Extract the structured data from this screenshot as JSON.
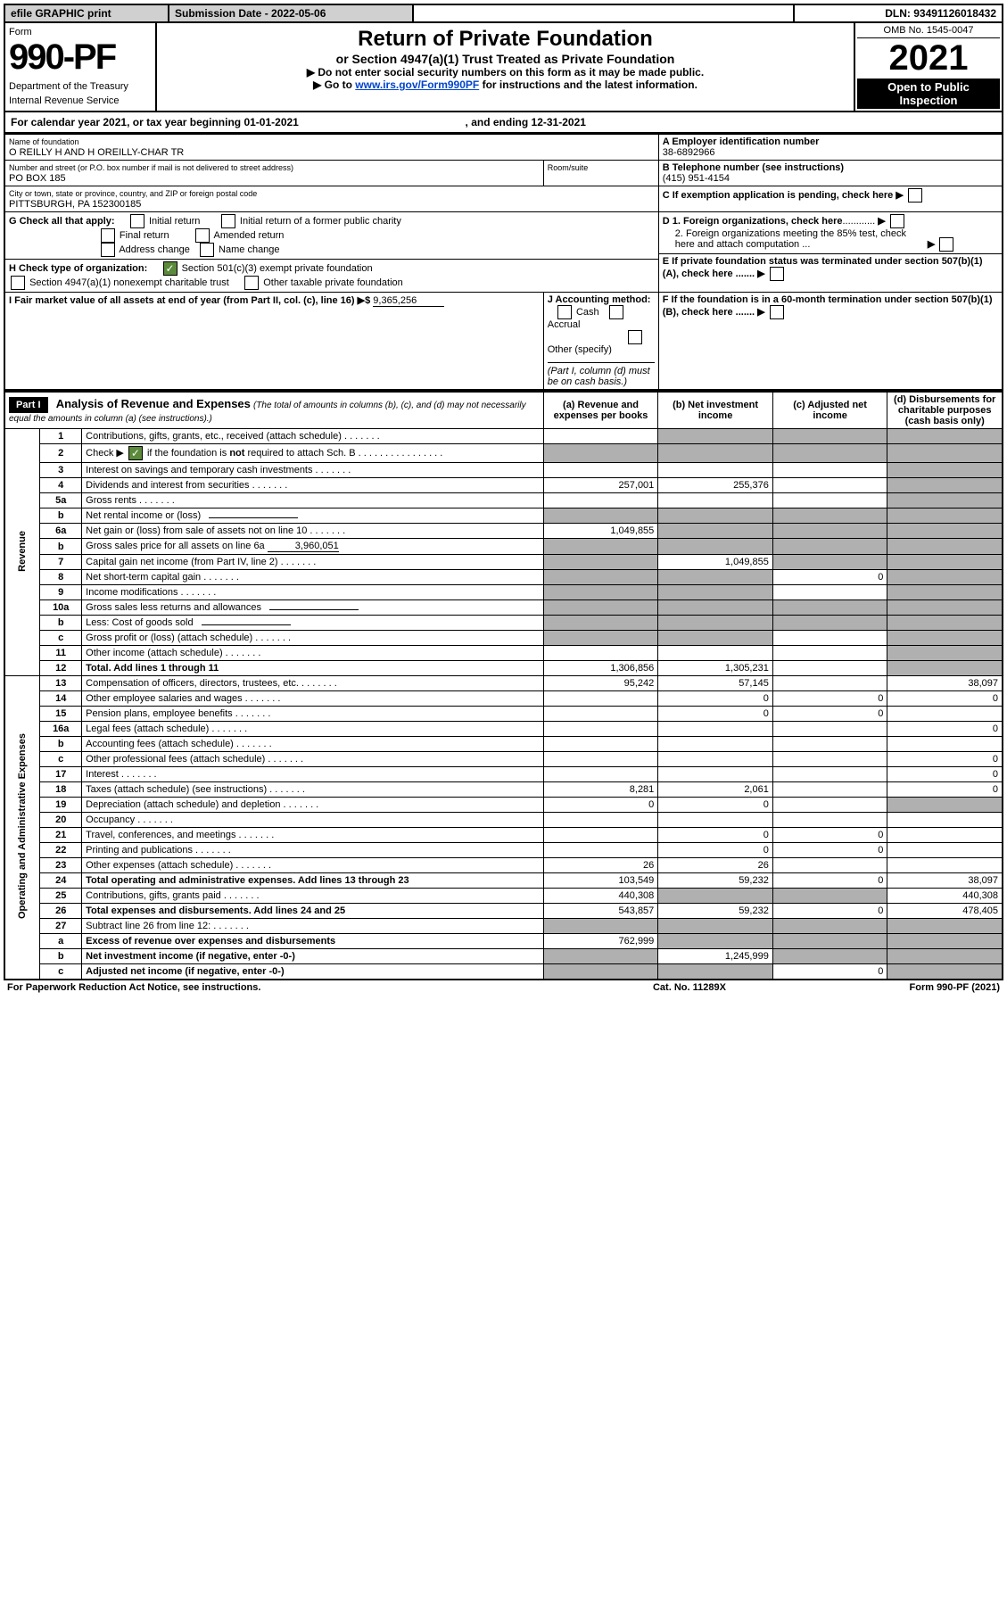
{
  "topbar": {
    "efile_label": "efile GRAPHIC print",
    "submission_label": "Submission Date - 2022-05-06",
    "dln_label": "DLN: 93491126018432"
  },
  "header": {
    "form_label": "Form",
    "form_number": "990-PF",
    "dept": "Department of the Treasury",
    "irs": "Internal Revenue Service",
    "title": "Return of Private Foundation",
    "subtitle": "or Section 4947(a)(1) Trust Treated as Private Foundation",
    "note1": "▶ Do not enter social security numbers on this form as it may be made public.",
    "note2_pre": "▶ Go to ",
    "note2_link": "www.irs.gov/Form990PF",
    "note2_post": " for instructions and the latest information.",
    "omb": "OMB No. 1545-0047",
    "year": "2021",
    "open1": "Open to Public",
    "open2": "Inspection"
  },
  "calyear": {
    "pre": "For calendar year 2021, or tax year beginning ",
    "begin": "01-01-2021",
    "mid": " , and ending ",
    "end": "12-31-2021"
  },
  "id": {
    "name_label": "Name of foundation",
    "name": "O REILLY H AND H OREILLY-CHAR TR",
    "addr_label": "Number and street (or P.O. box number if mail is not delivered to street address)",
    "room_label": "Room/suite",
    "addr": "PO BOX 185",
    "city_label": "City or town, state or province, country, and ZIP or foreign postal code",
    "city": "PITTSBURGH, PA  152300185",
    "a_label": "A Employer identification number",
    "a_val": "38-6892966",
    "b_label": "B Telephone number (see instructions)",
    "b_val": "(415) 951-4154",
    "c_label": "C If exemption application is pending, check here",
    "g_label": "G Check all that apply:",
    "g_initial": "Initial return",
    "g_initial_former": "Initial return of a former public charity",
    "g_final": "Final return",
    "g_amended": "Amended return",
    "g_addr_change": "Address change",
    "g_name_change": "Name change",
    "d1_label": "D 1. Foreign organizations, check here",
    "d2_label": "2. Foreign organizations meeting the 85% test, check here and attach computation ...",
    "h_label": "H Check type of organization:",
    "h_501c3": "Section 501(c)(3) exempt private foundation",
    "h_4947": "Section 4947(a)(1) nonexempt charitable trust",
    "h_other_tax": "Other taxable private foundation",
    "e_label": "E  If private foundation status was terminated under section 507(b)(1)(A), check here .......",
    "i_label": "I Fair market value of all assets at end of year (from Part II, col. (c), line 16) ▶$ ",
    "i_val": "9,365,256",
    "j_label": "J Accounting method:",
    "j_cash": "Cash",
    "j_accrual": "Accrual",
    "j_other": "Other (specify)",
    "j_note": "(Part I, column (d) must be on cash basis.)",
    "f_label": "F  If the foundation is in a 60-month termination under section 507(b)(1)(B), check here ......."
  },
  "part1": {
    "badge": "Part I",
    "title": "Analysis of Revenue and Expenses",
    "title_note": " (The total of amounts in columns (b), (c), and (d) may not necessarily equal the amounts in column (a) (see instructions).)",
    "col_a": "(a)  Revenue and expenses per books",
    "col_b": "(b)  Net investment income",
    "col_c": "(c)  Adjusted net income",
    "col_d": "(d)  Disbursements for charitable purposes (cash basis only)"
  },
  "side_labels": {
    "revenue": "Revenue",
    "op_admin": "Operating and Administrative Expenses"
  },
  "rows": [
    {
      "n": "1",
      "label": "Contributions, gifts, grants, etc., received (attach schedule)",
      "a": "",
      "b": "shade",
      "c": "shade",
      "d": "shade"
    },
    {
      "n": "2",
      "label": "Check ▶ ☑ if the foundation is not required to attach Sch. B",
      "a": "shade",
      "b": "shade",
      "c": "shade",
      "d": "shade",
      "has_check": true
    },
    {
      "n": "3",
      "label": "Interest on savings and temporary cash investments",
      "a": "",
      "b": "",
      "c": "",
      "d": "shade"
    },
    {
      "n": "4",
      "label": "Dividends and interest from securities",
      "a": "257,001",
      "b": "255,376",
      "c": "",
      "d": "shade"
    },
    {
      "n": "5a",
      "label": "Gross rents",
      "a": "",
      "b": "",
      "c": "",
      "d": "shade"
    },
    {
      "n": "b",
      "label": "Net rental income or (loss)",
      "a": "shade",
      "b": "shade",
      "c": "shade",
      "d": "shade",
      "has_fill": true
    },
    {
      "n": "6a",
      "label": "Net gain or (loss) from sale of assets not on line 10",
      "a": "1,049,855",
      "b": "shade",
      "c": "shade",
      "d": "shade"
    },
    {
      "n": "b",
      "label": "Gross sales price for all assets on line 6a",
      "a": "shade",
      "b": "shade",
      "c": "shade",
      "d": "shade",
      "fill_val": "3,960,051"
    },
    {
      "n": "7",
      "label": "Capital gain net income (from Part IV, line 2)",
      "a": "shade",
      "b": "1,049,855",
      "c": "shade",
      "d": "shade"
    },
    {
      "n": "8",
      "label": "Net short-term capital gain",
      "a": "shade",
      "b": "shade",
      "c": "0",
      "d": "shade"
    },
    {
      "n": "9",
      "label": "Income modifications",
      "a": "shade",
      "b": "shade",
      "c": "",
      "d": "shade"
    },
    {
      "n": "10a",
      "label": "Gross sales less returns and allowances",
      "a": "shade",
      "b": "shade",
      "c": "shade",
      "d": "shade",
      "has_fill": true
    },
    {
      "n": "b",
      "label": "Less: Cost of goods sold",
      "a": "shade",
      "b": "shade",
      "c": "shade",
      "d": "shade",
      "has_fill": true
    },
    {
      "n": "c",
      "label": "Gross profit or (loss) (attach schedule)",
      "a": "shade",
      "b": "shade",
      "c": "",
      "d": "shade"
    },
    {
      "n": "11",
      "label": "Other income (attach schedule)",
      "a": "",
      "b": "",
      "c": "",
      "d": "shade"
    },
    {
      "n": "12",
      "label": "Total. Add lines 1 through 11",
      "a": "1,306,856",
      "b": "1,305,231",
      "c": "",
      "d": "shade",
      "bold": true
    }
  ],
  "exp_rows": [
    {
      "n": "13",
      "label": "Compensation of officers, directors, trustees, etc.",
      "a": "95,242",
      "b": "57,145",
      "c": "",
      "d": "38,097"
    },
    {
      "n": "14",
      "label": "Other employee salaries and wages",
      "a": "",
      "b": "0",
      "c": "0",
      "d": "0"
    },
    {
      "n": "15",
      "label": "Pension plans, employee benefits",
      "a": "",
      "b": "0",
      "c": "0",
      "d": ""
    },
    {
      "n": "16a",
      "label": "Legal fees (attach schedule)",
      "a": "",
      "b": "",
      "c": "",
      "d": "0"
    },
    {
      "n": "b",
      "label": "Accounting fees (attach schedule)",
      "a": "",
      "b": "",
      "c": "",
      "d": ""
    },
    {
      "n": "c",
      "label": "Other professional fees (attach schedule)",
      "a": "",
      "b": "",
      "c": "",
      "d": "0"
    },
    {
      "n": "17",
      "label": "Interest",
      "a": "",
      "b": "",
      "c": "",
      "d": "0"
    },
    {
      "n": "18",
      "label": "Taxes (attach schedule) (see instructions)",
      "a": "8,281",
      "b": "2,061",
      "c": "",
      "d": "0"
    },
    {
      "n": "19",
      "label": "Depreciation (attach schedule) and depletion",
      "a": "0",
      "b": "0",
      "c": "",
      "d": "shade"
    },
    {
      "n": "20",
      "label": "Occupancy",
      "a": "",
      "b": "",
      "c": "",
      "d": ""
    },
    {
      "n": "21",
      "label": "Travel, conferences, and meetings",
      "a": "",
      "b": "0",
      "c": "0",
      "d": ""
    },
    {
      "n": "22",
      "label": "Printing and publications",
      "a": "",
      "b": "0",
      "c": "0",
      "d": ""
    },
    {
      "n": "23",
      "label": "Other expenses (attach schedule)",
      "a": "26",
      "b": "26",
      "c": "",
      "d": ""
    },
    {
      "n": "24",
      "label": "Total operating and administrative expenses. Add lines 13 through 23",
      "a": "103,549",
      "b": "59,232",
      "c": "0",
      "d": "38,097",
      "bold": true
    },
    {
      "n": "25",
      "label": "Contributions, gifts, grants paid",
      "a": "440,308",
      "b": "shade",
      "c": "shade",
      "d": "440,308"
    },
    {
      "n": "26",
      "label": "Total expenses and disbursements. Add lines 24 and 25",
      "a": "543,857",
      "b": "59,232",
      "c": "0",
      "d": "478,405",
      "bold": true
    },
    {
      "n": "27",
      "label": "Subtract line 26 from line 12:",
      "a": "shade",
      "b": "shade",
      "c": "shade",
      "d": "shade"
    },
    {
      "n": "a",
      "label": "Excess of revenue over expenses and disbursements",
      "a": "762,999",
      "b": "shade",
      "c": "shade",
      "d": "shade",
      "bold": true
    },
    {
      "n": "b",
      "label": "Net investment income (if negative, enter -0-)",
      "a": "shade",
      "b": "1,245,999",
      "c": "shade",
      "d": "shade",
      "bold": true
    },
    {
      "n": "c",
      "label": "Adjusted net income (if negative, enter -0-)",
      "a": "shade",
      "b": "shade",
      "c": "0",
      "d": "shade",
      "bold": true
    }
  ],
  "footer": {
    "left": "For Paperwork Reduction Act Notice, see instructions.",
    "center": "Cat. No. 11289X",
    "right": "Form 990-PF (2021)"
  }
}
